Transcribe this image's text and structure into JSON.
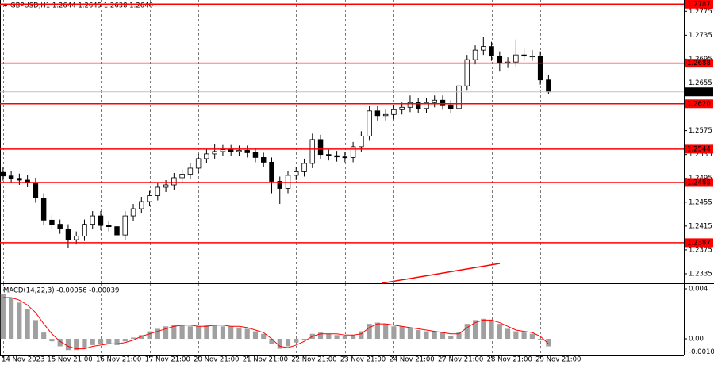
{
  "chart_data": [
    {
      "type": "candlestick",
      "title": "GBPUSD,H1  1.2644 1.2645 1.2638 1.2640",
      "x": [
        0,
        4,
        8,
        12,
        16,
        20,
        24,
        28,
        32,
        36,
        40,
        44,
        48,
        52,
        56,
        60,
        64,
        68,
        72,
        76,
        80,
        84,
        88,
        92,
        96,
        100,
        104,
        108,
        112,
        116,
        120,
        124,
        128,
        132,
        136,
        140,
        144,
        148,
        152,
        156,
        160,
        164,
        168,
        172,
        176,
        180,
        184,
        188,
        192,
        196,
        200,
        204,
        208,
        212,
        216,
        220,
        224,
        228,
        232,
        236,
        240,
        244,
        248,
        252,
        256,
        260,
        264,
        268
      ],
      "open": [
        1.2505,
        1.2499,
        1.2495,
        1.2492,
        1.2488,
        1.2462,
        1.2425,
        1.2418,
        1.241,
        1.2392,
        1.2398,
        1.2418,
        1.2432,
        1.2416,
        1.2414,
        1.24,
        1.2432,
        1.2444,
        1.2456,
        1.2466,
        1.248,
        1.2484,
        1.2496,
        1.2502,
        1.2512,
        1.2528,
        1.2536,
        1.254,
        1.2543,
        1.254,
        1.2542,
        1.2538,
        1.253,
        1.2522,
        1.249,
        1.2478,
        1.25,
        1.2506,
        1.252,
        1.256,
        1.2535,
        1.2533,
        1.2531,
        1.253,
        1.2548,
        1.2566,
        1.2608,
        1.26,
        1.2602,
        1.261,
        1.2614,
        1.2622,
        1.2612,
        1.2622,
        1.2626,
        1.2618,
        1.2612,
        1.265,
        1.2694,
        1.271,
        1.2716,
        1.27,
        1.2688,
        1.269,
        1.2702,
        1.27,
        1.27,
        1.266
      ],
      "high": [
        1.2513,
        1.2507,
        1.2503,
        1.25,
        1.2496,
        1.247,
        1.2433,
        1.2426,
        1.2418,
        1.2406,
        1.2426,
        1.244,
        1.244,
        1.2424,
        1.2422,
        1.244,
        1.2452,
        1.2464,
        1.2474,
        1.2488,
        1.2492,
        1.2504,
        1.251,
        1.252,
        1.2536,
        1.2544,
        1.2552,
        1.2551,
        1.2551,
        1.255,
        1.255,
        1.2546,
        1.2538,
        1.253,
        1.2498,
        1.2508,
        1.2514,
        1.2528,
        1.257,
        1.2568,
        1.2543,
        1.2541,
        1.2539,
        1.2556,
        1.2574,
        1.2616,
        1.2616,
        1.261,
        1.2618,
        1.2622,
        1.2634,
        1.263,
        1.263,
        1.2634,
        1.2634,
        1.2626,
        1.2658,
        1.2702,
        1.2718,
        1.2732,
        1.2724,
        1.2708,
        1.2698,
        1.2728,
        1.2712,
        1.271,
        1.2708,
        1.2668
      ],
      "low": [
        1.2491,
        1.2487,
        1.2484,
        1.248,
        1.2454,
        1.2417,
        1.241,
        1.2402,
        1.2378,
        1.2384,
        1.239,
        1.241,
        1.2408,
        1.2406,
        1.2376,
        1.2392,
        1.2424,
        1.2436,
        1.2448,
        1.2458,
        1.2472,
        1.2476,
        1.2488,
        1.2494,
        1.2504,
        1.252,
        1.2528,
        1.2532,
        1.2532,
        1.2532,
        1.253,
        1.2522,
        1.2514,
        1.247,
        1.2452,
        1.247,
        1.2492,
        1.2498,
        1.2512,
        1.2527,
        1.2525,
        1.2523,
        1.2522,
        1.2522,
        1.254,
        1.2558,
        1.2592,
        1.2592,
        1.2594,
        1.2602,
        1.2606,
        1.2604,
        1.2604,
        1.2614,
        1.261,
        1.2604,
        1.2604,
        1.2642,
        1.2686,
        1.2702,
        1.2692,
        1.2674,
        1.268,
        1.2682,
        1.2692,
        1.2692,
        1.2652,
        1.2636
      ],
      "close": [
        1.2499,
        1.2495,
        1.2492,
        1.2488,
        1.2462,
        1.2425,
        1.2418,
        1.241,
        1.2392,
        1.2398,
        1.2418,
        1.2432,
        1.2416,
        1.2414,
        1.24,
        1.2432,
        1.2444,
        1.2456,
        1.2466,
        1.248,
        1.2484,
        1.2496,
        1.2502,
        1.2512,
        1.2528,
        1.2536,
        1.254,
        1.2543,
        1.254,
        1.2542,
        1.2538,
        1.253,
        1.2522,
        1.249,
        1.2478,
        1.25,
        1.2506,
        1.252,
        1.256,
        1.2535,
        1.2533,
        1.2531,
        1.253,
        1.2548,
        1.2566,
        1.2608,
        1.26,
        1.2602,
        1.261,
        1.2614,
        1.2622,
        1.2612,
        1.2622,
        1.2626,
        1.2618,
        1.2612,
        1.265,
        1.2694,
        1.271,
        1.2716,
        1.27,
        1.2688,
        1.269,
        1.2702,
        1.27,
        1.27,
        1.266,
        1.264
      ],
      "up_color": "#ffffff",
      "down_color": "#000000",
      "xlim": [
        -1.5,
        334.5
      ],
      "ylim": [
        1.2319,
        1.2794
      ],
      "yticks": [
        1.2335,
        1.2375,
        1.2415,
        1.2455,
        1.2495,
        1.2535,
        1.2575,
        1.2655,
        1.2695,
        1.2735,
        1.2775
      ],
      "xticks": [
        {
          "value": 0,
          "label": "14 Nov 2023"
        },
        {
          "value": 24,
          "label": "15 Nov 21:00"
        },
        {
          "value": 48,
          "label": "16 Nov 21:00"
        },
        {
          "value": 72,
          "label": "17 Nov 21:00"
        },
        {
          "value": 96,
          "label": "20 Nov 21:00"
        },
        {
          "value": 120,
          "label": "21 Nov 21:00"
        },
        {
          "value": 144,
          "label": "22 Nov 21:00"
        },
        {
          "value": 168,
          "label": "23 Nov 21:00"
        },
        {
          "value": 192,
          "label": "24 Nov 21:00"
        },
        {
          "value": 216,
          "label": "27 Nov 21:00"
        },
        {
          "value": 240,
          "label": "28 Nov 21:00"
        },
        {
          "value": 264,
          "label": "29 Nov 21:00"
        }
      ],
      "grid": "x",
      "levels": [
        1.2787,
        1.2688,
        {
          "value": 1.262,
          "label": "1.2620"
        },
        1.2544,
        1.2488,
        1.2387
      ],
      "level_color": "#ff0000",
      "current_price": {
        "value": 1.264,
        "label": "1.2640"
      }
    },
    {
      "type": "macd",
      "title": "MACD(14,22,3) -0.00056 -0.00039",
      "x": [
        0,
        4,
        8,
        12,
        16,
        20,
        24,
        28,
        32,
        36,
        40,
        44,
        48,
        52,
        56,
        60,
        64,
        68,
        72,
        76,
        80,
        84,
        88,
        92,
        96,
        100,
        104,
        108,
        112,
        116,
        120,
        124,
        128,
        132,
        136,
        140,
        144,
        148,
        152,
        156,
        160,
        164,
        168,
        172,
        176,
        180,
        184,
        188,
        192,
        196,
        200,
        204,
        208,
        212,
        216,
        220,
        224,
        228,
        232,
        236,
        240,
        244,
        248,
        252,
        256,
        260,
        264,
        268
      ],
      "histogram": [
        0.0036,
        0.0033,
        0.0029,
        0.0024,
        0.0015,
        0.0005,
        -0.0002,
        -0.0006,
        -0.0009,
        -0.0009,
        -0.0007,
        -0.0005,
        -0.0004,
        -0.0004,
        -0.0005,
        -0.0002,
        0.0001,
        0.0003,
        0.0006,
        0.0008,
        0.001,
        0.0011,
        0.0011,
        0.001,
        0.001,
        0.0011,
        0.0011,
        0.001,
        0.001,
        0.0009,
        0.0008,
        0.0006,
        0.0004,
        -0.0004,
        -0.0008,
        -0.0006,
        -0.0003,
        -0.0001,
        0.0004,
        0.0005,
        0.0004,
        0.0003,
        0.0002,
        0.0003,
        0.0006,
        0.0012,
        0.0013,
        0.0012,
        0.001,
        0.001,
        0.0009,
        0.0007,
        0.0006,
        0.0006,
        0.0005,
        0.0002,
        0.0005,
        0.0012,
        0.0015,
        0.0016,
        0.0015,
        0.0012,
        0.0008,
        0.0006,
        0.0005,
        0.0004,
        -0.0001,
        -0.0006
      ],
      "signal": [
        0.0033,
        0.0033,
        0.0031,
        0.0027,
        0.0021,
        0.0012,
        0.0004,
        -0.0002,
        -0.0006,
        -0.0008,
        -0.0008,
        -0.0006,
        -0.0005,
        -0.0004,
        -0.0004,
        -0.0003,
        -0.0001,
        0.0002,
        0.0004,
        0.0006,
        0.0008,
        0.001,
        0.0011,
        0.0011,
        0.001,
        0.001,
        0.0011,
        0.0011,
        0.001,
        0.001,
        0.0009,
        0.0007,
        0.0005,
        0,
        -0.0006,
        -0.0007,
        -0.0005,
        -0.0002,
        0.0002,
        0.0004,
        0.0004,
        0.0004,
        0.0003,
        0.0003,
        0.0004,
        0.0009,
        0.0012,
        0.0012,
        0.0011,
        0.001,
        0.0009,
        0.0008,
        0.0007,
        0.0006,
        0.0005,
        0.0004,
        0.0004,
        0.0009,
        0.0013,
        0.0015,
        0.0015,
        0.0013,
        0.001,
        0.0007,
        0.0006,
        0.0005,
        0.0002,
        -0.0004
      ],
      "histogram_color": "#a0a0a0",
      "signal_color": "#ff0000",
      "xlim": [
        -1.5,
        334.5
      ],
      "ylim": [
        -0.00133,
        0.00438
      ],
      "yticks": [
        0.004,
        {
          "value": 0,
          "label": "0.00"
        },
        {
          "value": -0.00104,
          "label": "-0.00104"
        }
      ]
    }
  ]
}
